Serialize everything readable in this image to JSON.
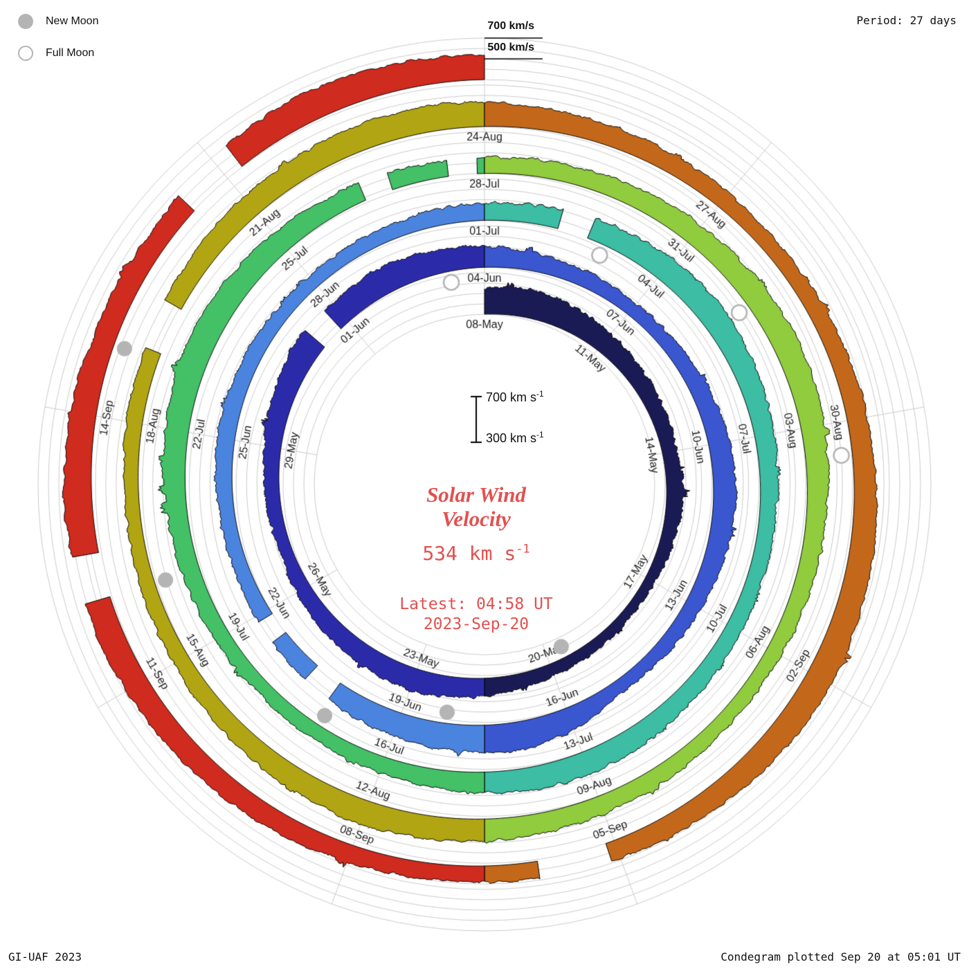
{
  "theme": {
    "background": "#ffffff",
    "grid_color": "#cccccc",
    "band_outline": "#000000",
    "label_color": "#1a1a1a",
    "accent_red": "#e2514f",
    "moon_fill": "#b4b4b4"
  },
  "legend": {
    "new_moon_label": "New Moon",
    "full_moon_label": "Full Moon"
  },
  "header": {
    "period_label": "Period: 27 days"
  },
  "footer": {
    "credit": "GI-UAF 2023",
    "plotted_label": "Condegram plotted Sep 20 at 05:01 UT"
  },
  "end_scale": {
    "outer_label": "700 km/s",
    "inner_label": "500 km/s"
  },
  "center_scale": {
    "top_text": "700 km s",
    "bottom_text": "300 km s",
    "superscript": "-1"
  },
  "center": {
    "title_line1": "Solar Wind",
    "title_line2": "Velocity",
    "value_text": "534 km s",
    "superscript": "-1",
    "latest_line": "Latest: 04:58 UT",
    "date_line": "2023-Sep-20"
  },
  "chart_data": {
    "type": "area",
    "subtype": "condegram-spiral",
    "title": "Solar Wind Velocity",
    "units": "km/s",
    "period_days": 27,
    "rotations": 5,
    "start_date": "2023-05-08",
    "end_date": "2023-09-20",
    "latest": {
      "velocity_km_s": 534,
      "time_ut": "04:58 UT",
      "date": "2023-Sep-20"
    },
    "velocity_axis": {
      "min": 300,
      "max": 700,
      "grid_step": 100
    },
    "date_labels": [
      {
        "t": 0,
        "label": "08-May"
      },
      {
        "t": 3,
        "label": "11-May"
      },
      {
        "t": 6,
        "label": "14-May"
      },
      {
        "t": 9,
        "label": "17-May"
      },
      {
        "t": 12,
        "label": "20-May"
      },
      {
        "t": 15,
        "label": "23-May"
      },
      {
        "t": 18,
        "label": "26-May"
      },
      {
        "t": 21,
        "label": "29-May"
      },
      {
        "t": 24,
        "label": "01-Jun"
      },
      {
        "t": 27,
        "label": "04-Jun"
      },
      {
        "t": 30,
        "label": "07-Jun"
      },
      {
        "t": 33,
        "label": "10-Jun"
      },
      {
        "t": 36,
        "label": "13-Jun"
      },
      {
        "t": 39,
        "label": "16-Jun"
      },
      {
        "t": 42,
        "label": "19-Jun"
      },
      {
        "t": 45,
        "label": "22-Jun"
      },
      {
        "t": 48,
        "label": "25-Jun"
      },
      {
        "t": 51,
        "label": "28-Jun"
      },
      {
        "t": 54,
        "label": "01-Jul"
      },
      {
        "t": 57,
        "label": "04-Jul"
      },
      {
        "t": 60,
        "label": "07-Jul"
      },
      {
        "t": 63,
        "label": "10-Jul"
      },
      {
        "t": 66,
        "label": "13-Jul"
      },
      {
        "t": 69,
        "label": "16-Jul"
      },
      {
        "t": 72,
        "label": "19-Jul"
      },
      {
        "t": 75,
        "label": "22-Jul"
      },
      {
        "t": 78,
        "label": "25-Jul"
      },
      {
        "t": 81,
        "label": "28-Jul"
      },
      {
        "t": 84,
        "label": "31-Jul"
      },
      {
        "t": 87,
        "label": "03-Aug"
      },
      {
        "t": 90,
        "label": "06-Aug"
      },
      {
        "t": 93,
        "label": "09-Aug"
      },
      {
        "t": 96,
        "label": "12-Aug"
      },
      {
        "t": 99,
        "label": "15-Aug"
      },
      {
        "t": 102,
        "label": "18-Aug"
      },
      {
        "t": 105,
        "label": "21-Aug"
      },
      {
        "t": 108,
        "label": "24-Aug"
      },
      {
        "t": 111,
        "label": "27-Aug"
      },
      {
        "t": 114,
        "label": "30-Aug"
      },
      {
        "t": 117,
        "label": "02-Sep"
      },
      {
        "t": 120,
        "label": "05-Sep"
      },
      {
        "t": 123,
        "label": "08-Sep"
      },
      {
        "t": 126,
        "label": "11-Sep"
      },
      {
        "t": 129,
        "label": "14-Sep"
      }
    ],
    "daily_velocity_km_s": [
      550,
      575,
      540,
      505,
      470,
      455,
      440,
      465,
      430,
      400,
      385,
      405,
      425,
      455,
      490,
      520,
      495,
      470,
      445,
      420,
      435,
      460,
      510,
      555,
      540,
      560,
      530,
      500,
      470,
      450,
      430,
      440,
      470,
      500,
      520,
      490,
      460,
      435,
      415,
      520,
      580,
      555,
      535,
      505,
      475,
      450,
      435,
      450,
      475,
      460,
      440,
      425,
      435,
      450,
      465,
      485,
      510,
      535,
      545,
      515,
      485,
      462,
      445,
      452,
      470,
      498,
      528,
      512,
      482,
      462,
      443,
      432,
      450,
      472,
      498,
      528,
      558,
      542,
      512,
      483,
      463,
      452,
      468,
      488,
      508,
      528,
      548,
      522,
      492,
      472,
      452,
      442,
      458,
      478,
      498,
      518,
      538,
      512,
      482,
      462,
      442,
      432,
      452,
      472,
      492,
      512,
      532,
      552,
      532,
      502,
      482,
      462,
      452,
      470,
      492,
      518,
      538,
      558,
      532,
      502,
      482,
      462,
      452,
      468,
      490,
      512,
      532,
      552,
      568,
      542,
      512,
      492,
      538,
      578,
      558,
      534
    ],
    "gaps_days": [
      [
        23.3,
        23.8
      ],
      [
        43.2,
        43.7
      ],
      [
        44.5,
        44.9
      ],
      [
        55.2,
        55.7
      ],
      [
        79.3,
        79.7
      ],
      [
        80.5,
        80.9
      ],
      [
        102.9,
        103.5
      ],
      [
        120.1,
        120.9
      ],
      [
        127.0,
        127.5
      ],
      [
        131.5,
        132.2
      ]
    ],
    "color_segments": [
      {
        "from": 0,
        "to": 13.5,
        "color": "#1a1b55"
      },
      {
        "from": 13.5,
        "to": 27,
        "color": "#2b2baa"
      },
      {
        "from": 27,
        "to": 40.5,
        "color": "#3a57d0"
      },
      {
        "from": 40.5,
        "to": 54,
        "color": "#4b84de"
      },
      {
        "from": 54,
        "to": 67.5,
        "color": "#3cbda4"
      },
      {
        "from": 67.5,
        "to": 81,
        "color": "#44c066"
      },
      {
        "from": 81,
        "to": 94.5,
        "color": "#90cc3e"
      },
      {
        "from": 94.5,
        "to": 108,
        "color": "#b2a513"
      },
      {
        "from": 108,
        "to": 121.5,
        "color": "#c3681a"
      },
      {
        "from": 121.5,
        "to": 135,
        "color": "#cf2b1e"
      }
    ],
    "moons": {
      "new_moon_days": [
        11.6,
        41.2,
        70.1,
        100.0,
        129.8
      ],
      "full_moon_days": [
        26.3,
        56.0,
        85.2,
        114.4
      ]
    }
  }
}
